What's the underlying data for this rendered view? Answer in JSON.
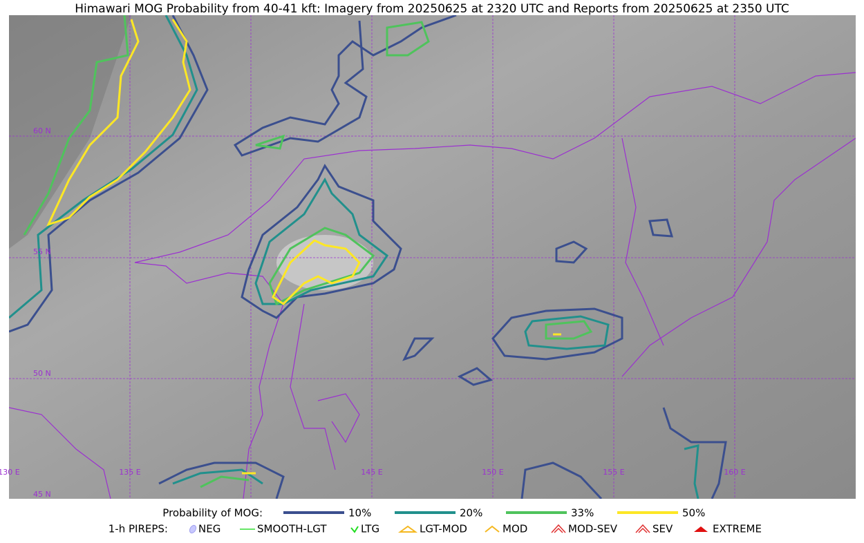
{
  "title": "Himawari MOG Probability from 40-41 kft: Imagery from 20250625 at 2320 UTC and Reports from 20250625 at 2350 UTC",
  "grid_labels": {
    "latitudes": [
      "60 N",
      "55 N",
      "50 N",
      "45 N"
    ],
    "longitudes": [
      "130 E",
      "135 E",
      "145 E",
      "150 E",
      "155 E",
      "160 E"
    ]
  },
  "legend": {
    "probability_label": "Probability of MOG:",
    "probability_entries": [
      {
        "label": "10%",
        "color": "#3b4f8e"
      },
      {
        "label": "20%",
        "color": "#21908c"
      },
      {
        "label": "33%",
        "color": "#4fc35c"
      },
      {
        "label": "50%",
        "color": "#fde725"
      }
    ],
    "pireps_label": "1-h PIREPS:",
    "pireps_entries": [
      "NEG",
      "SMOOTH-LGT",
      "LTG",
      "LGT-MOD",
      "MOD",
      "MOD-SEV",
      "SEV",
      "EXTREME"
    ]
  }
}
